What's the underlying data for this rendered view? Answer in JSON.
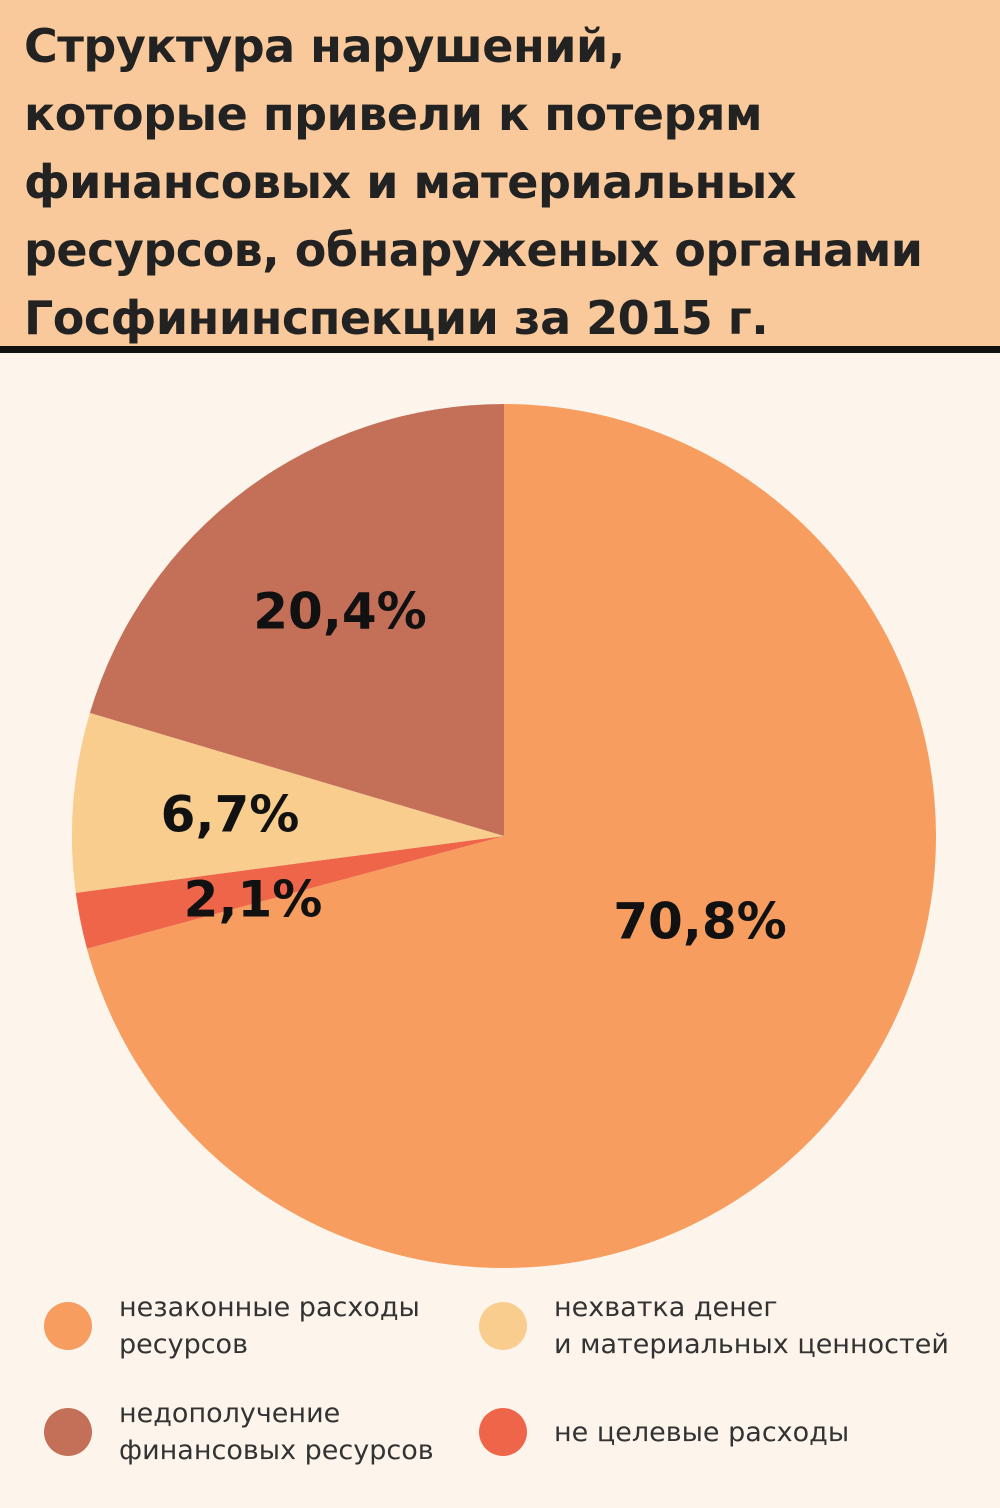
{
  "chart_data": {
    "type": "pie",
    "title": "Структура нарушений,\nкоторые привели к потерям\nфинансовых и материальных\nресурсов, обнаруженых органами\nГосфининспекции за 2015 г.",
    "categories": [
      "незаконные расходы\nресурсов",
      "не целевые расходы",
      "нехватка денег\nи материальных ценностей",
      "недополучение\nфинансовых ресурсов"
    ],
    "values": [
      70.8,
      2.1,
      6.7,
      20.4
    ],
    "value_labels": [
      "70,8%",
      "2,1%",
      "6,7%",
      "20,4%"
    ],
    "colors": [
      "#f69d5f",
      "#ef654a",
      "#f8cd8e",
      "#c46f58"
    ]
  }
}
